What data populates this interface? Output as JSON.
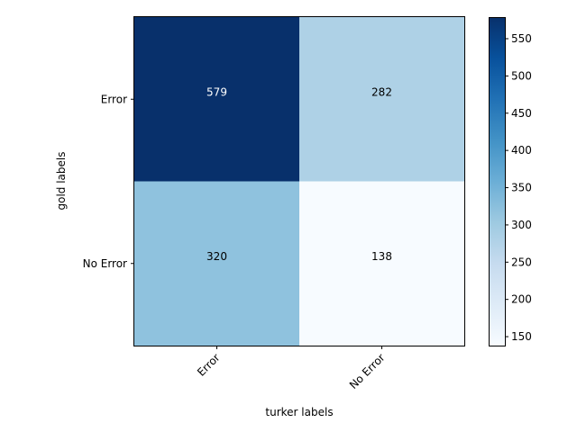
{
  "chart_data": {
    "type": "heatmap",
    "title": "",
    "xlabel": "turker labels",
    "ylabel": "gold labels",
    "x_categories": [
      "Error",
      "No Error"
    ],
    "y_categories": [
      "Error",
      "No Error"
    ],
    "values": [
      [
        579,
        282
      ],
      [
        320,
        138
      ]
    ],
    "colormap": "Blues",
    "clim": [
      138,
      579
    ],
    "colorbar_ticks": [
      150,
      200,
      250,
      300,
      350,
      400,
      450,
      500,
      550
    ],
    "xtick_rotation": 45
  },
  "colors": {
    "cmap_low": "#f7fbff",
    "cmap_high": "#08306b",
    "text_light": "#ffffff",
    "text_dark": "#000000",
    "axis": "#000000"
  }
}
